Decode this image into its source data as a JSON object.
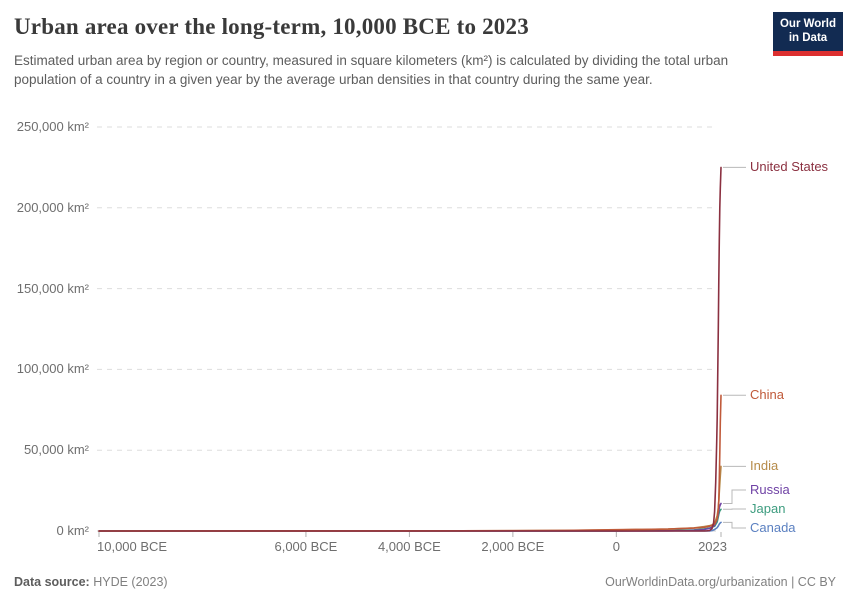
{
  "header": {
    "title": "Urban area over the long-term, 10,000 BCE to 2023",
    "subtitle": "Estimated urban area by region or country, measured in square kilometers (km²) is calculated by dividing the total urban population of a country in a given year by the average urban densities in that country during the same year.",
    "logo": {
      "line1": "Our World",
      "line2": "in Data",
      "bg_color": "#122b52",
      "stripe_color": "#dc2f2f"
    }
  },
  "footer": {
    "source_label": "Data source:",
    "source_value": "HYDE (2023)",
    "credit": "OurWorldinData.org/urbanization | CC BY"
  },
  "chart_data": {
    "type": "line",
    "title": "Urban area over the long-term, 10,000 BCE to 2023",
    "ylabel": "Urban area (km²)",
    "grid": "dashed-horizontal",
    "legend_position": "right-end-labels",
    "x_axis": {
      "range": [
        -10000,
        2023
      ],
      "ticks": [
        {
          "year": -10000,
          "label": "10,000 BCE"
        },
        {
          "year": -6000,
          "label": "6,000 BCE"
        },
        {
          "year": -4000,
          "label": "4,000 BCE"
        },
        {
          "year": -2000,
          "label": "2,000 BCE"
        },
        {
          "year": 0,
          "label": "0"
        },
        {
          "year": 2023,
          "label": "2023"
        }
      ]
    },
    "y_axis": {
      "range": [
        0,
        250000
      ],
      "ticks": [
        {
          "value": 0,
          "label": "0 km²"
        },
        {
          "value": 50000,
          "label": "50,000 km²"
        },
        {
          "value": 100000,
          "label": "100,000 km²"
        },
        {
          "value": 150000,
          "label": "150,000 km²"
        },
        {
          "value": 200000,
          "label": "200,000 km²"
        },
        {
          "value": 250000,
          "label": "250,000 km²"
        }
      ]
    },
    "series": [
      {
        "name": "United States",
        "color": "#8b3040",
        "points": [
          [
            -10000,
            0
          ],
          [
            0,
            0
          ],
          [
            1000,
            0
          ],
          [
            1500,
            10
          ],
          [
            1600,
            20
          ],
          [
            1700,
            50
          ],
          [
            1750,
            100
          ],
          [
            1800,
            250
          ],
          [
            1850,
            1500
          ],
          [
            1880,
            5000
          ],
          [
            1900,
            12000
          ],
          [
            1920,
            30000
          ],
          [
            1940,
            55000
          ],
          [
            1950,
            70000
          ],
          [
            1960,
            95000
          ],
          [
            1970,
            125000
          ],
          [
            1980,
            155000
          ],
          [
            1990,
            180000
          ],
          [
            2000,
            200000
          ],
          [
            2010,
            212000
          ],
          [
            2023,
            225000
          ]
        ]
      },
      {
        "name": "China",
        "color": "#c05a3a",
        "points": [
          [
            -10000,
            0
          ],
          [
            -4000,
            50
          ],
          [
            -2000,
            200
          ],
          [
            -1000,
            400
          ],
          [
            0,
            800
          ],
          [
            500,
            1000
          ],
          [
            1000,
            1200
          ],
          [
            1500,
            1800
          ],
          [
            1700,
            2300
          ],
          [
            1800,
            3000
          ],
          [
            1850,
            3400
          ],
          [
            1900,
            4200
          ],
          [
            1950,
            7500
          ],
          [
            1970,
            13000
          ],
          [
            1980,
            19000
          ],
          [
            1990,
            32000
          ],
          [
            2000,
            48000
          ],
          [
            2010,
            67000
          ],
          [
            2023,
            84000
          ]
        ]
      },
      {
        "name": "India",
        "color": "#b68b49",
        "points": [
          [
            -10000,
            0
          ],
          [
            -3000,
            100
          ],
          [
            -2000,
            200
          ],
          [
            -1000,
            350
          ],
          [
            0,
            700
          ],
          [
            500,
            900
          ],
          [
            1000,
            1200
          ],
          [
            1500,
            1900
          ],
          [
            1700,
            2700
          ],
          [
            1800,
            3300
          ],
          [
            1850,
            3800
          ],
          [
            1900,
            4800
          ],
          [
            1950,
            9500
          ],
          [
            1970,
            14500
          ],
          [
            1980,
            18500
          ],
          [
            1990,
            24000
          ],
          [
            2000,
            29000
          ],
          [
            2010,
            34000
          ],
          [
            2023,
            40000
          ]
        ]
      },
      {
        "name": "Russia",
        "color": "#6f42a5",
        "points": [
          [
            -10000,
            0
          ],
          [
            500,
            0
          ],
          [
            1000,
            120
          ],
          [
            1400,
            300
          ],
          [
            1600,
            600
          ],
          [
            1700,
            900
          ],
          [
            1800,
            1600
          ],
          [
            1850,
            2300
          ],
          [
            1900,
            3600
          ],
          [
            1950,
            7500
          ],
          [
            1970,
            10500
          ],
          [
            1980,
            12500
          ],
          [
            1990,
            14500
          ],
          [
            2000,
            15500
          ],
          [
            2010,
            16200
          ],
          [
            2023,
            17000
          ]
        ]
      },
      {
        "name": "Japan",
        "color": "#3d9c7f",
        "points": [
          [
            -10000,
            0
          ],
          [
            0,
            60
          ],
          [
            500,
            160
          ],
          [
            1000,
            320
          ],
          [
            1500,
            650
          ],
          [
            1700,
            1300
          ],
          [
            1800,
            1800
          ],
          [
            1900,
            2900
          ],
          [
            1950,
            5600
          ],
          [
            1970,
            8800
          ],
          [
            1980,
            10200
          ],
          [
            1990,
            11600
          ],
          [
            2000,
            12400
          ],
          [
            2010,
            12900
          ],
          [
            2023,
            13400
          ]
        ]
      },
      {
        "name": "Canada",
        "color": "#5b80c1",
        "points": [
          [
            -10000,
            0
          ],
          [
            1600,
            0
          ],
          [
            1800,
            60
          ],
          [
            1850,
            250
          ],
          [
            1900,
            900
          ],
          [
            1950,
            2100
          ],
          [
            1970,
            3100
          ],
          [
            1980,
            3700
          ],
          [
            1990,
            4300
          ],
          [
            2000,
            4700
          ],
          [
            2010,
            5000
          ],
          [
            2023,
            5300
          ]
        ]
      }
    ],
    "end_values_2023": {
      "United States": 225000,
      "China": 84000,
      "India": 40000,
      "Russia": 17000,
      "Japan": 13400,
      "Canada": 5300
    },
    "colors": {
      "gridline": "#dddddd",
      "tick_mark": "#b0b0b0",
      "connector": "#b8b8b8",
      "tick_text": "#6e6e6e"
    }
  }
}
